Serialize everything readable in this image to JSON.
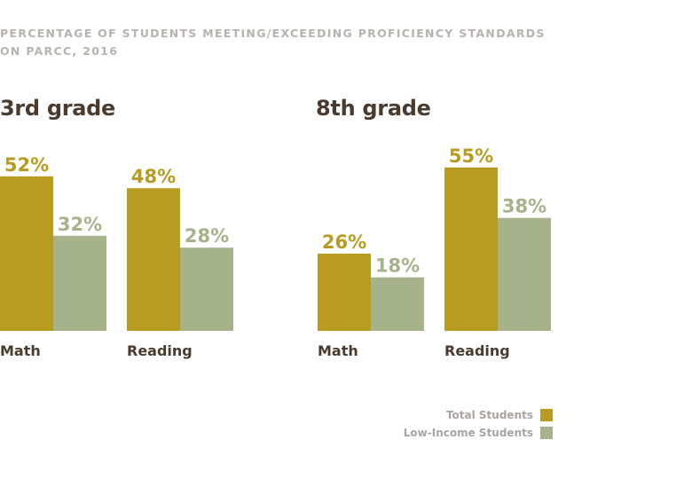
{
  "title": {
    "line1": "PERCENTAGE OF STUDENTS MEETING/EXCEEDING PROFICIENCY STANDARDS",
    "line2": "ON PARCC, 2016"
  },
  "colors": {
    "total": "#b89c22",
    "low_income": "#a5b28a",
    "panel_title": "#4a3b2e",
    "label": "#4a3b2e"
  },
  "legend": {
    "total": "Total Students",
    "low_income": "Low-Income Students"
  },
  "chart_data": [
    {
      "type": "bar",
      "title": "3rd grade",
      "categories": [
        "Math",
        "Reading"
      ],
      "series": [
        {
          "name": "Total Students",
          "values": [
            52,
            48
          ],
          "labels": [
            "52%",
            "48%"
          ]
        },
        {
          "name": "Low-Income Students",
          "values": [
            32,
            28
          ],
          "labels": [
            "32%",
            "28%"
          ]
        }
      ],
      "ylim": [
        0,
        55
      ],
      "grid": false,
      "legend_position": "bottom-right"
    },
    {
      "type": "bar",
      "title": "8th grade",
      "categories": [
        "Math",
        "Reading"
      ],
      "series": [
        {
          "name": "Total Students",
          "values": [
            26,
            55
          ],
          "labels": [
            "26%",
            "55%"
          ]
        },
        {
          "name": "Low-Income Students",
          "values": [
            18,
            38
          ],
          "labels": [
            "18%",
            "38%"
          ]
        }
      ],
      "ylim": [
        0,
        55
      ],
      "grid": false,
      "legend_position": "bottom-right"
    }
  ]
}
